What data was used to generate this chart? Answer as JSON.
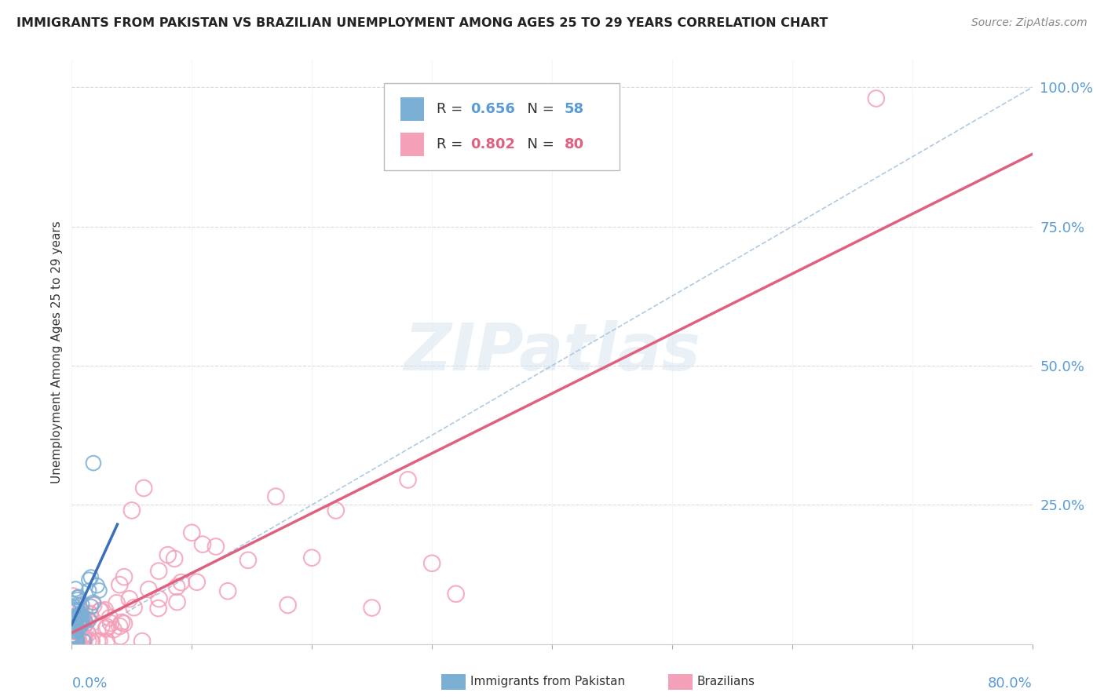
{
  "title": "IMMIGRANTS FROM PAKISTAN VS BRAZILIAN UNEMPLOYMENT AMONG AGES 25 TO 29 YEARS CORRELATION CHART",
  "source": "Source: ZipAtlas.com",
  "watermark": "ZIPatlas",
  "pakistan_color": "#7bafd4",
  "brazil_color": "#f4a0b8",
  "pakistan_line_color": "#3a6fba",
  "brazil_line_color": "#e06080",
  "ref_line_color": "#a8c4e0",
  "xmin": 0.0,
  "xmax": 0.8,
  "ymin": 0.0,
  "ymax": 1.05,
  "pak_R": 0.656,
  "pak_N": 58,
  "bra_R": 0.802,
  "bra_N": 80,
  "pak_line_x0": 0.0,
  "pak_line_x1": 0.038,
  "pak_line_y0": 0.035,
  "pak_line_y1": 0.215,
  "bra_line_x0": 0.0,
  "bra_line_x1": 0.8,
  "bra_line_y0": 0.02,
  "bra_line_y1": 0.88,
  "ref_line_x0": 0.0,
  "ref_line_x1": 0.8,
  "ref_line_y0": 0.0,
  "ref_line_y1": 1.0
}
